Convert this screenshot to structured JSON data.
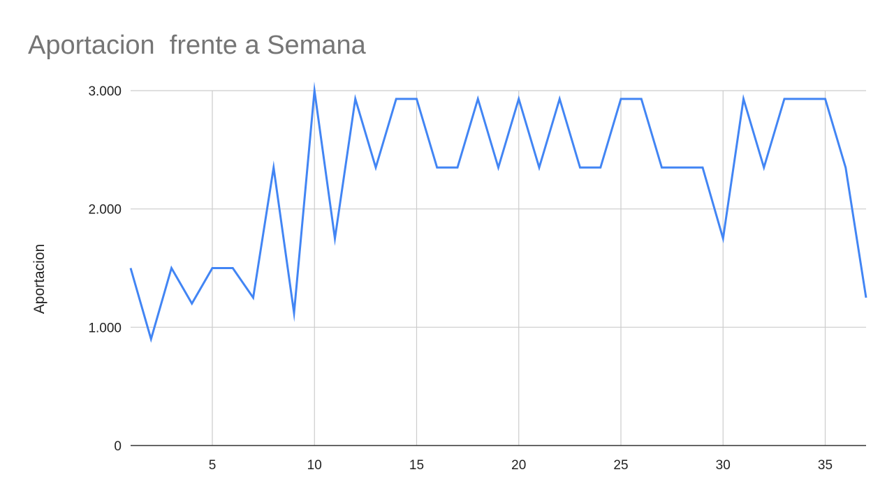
{
  "chart_data": {
    "type": "line",
    "title": "Aportacion  frente a Semana",
    "xlabel": "",
    "ylabel": "Aportacion",
    "xlim": [
      1,
      37
    ],
    "ylim": [
      0,
      3000
    ],
    "x_ticks": [
      5,
      10,
      15,
      20,
      25,
      30,
      35
    ],
    "y_ticks": [
      0,
      1000,
      2000,
      3000
    ],
    "y_tick_labels": [
      "0",
      "1.000",
      "2.000",
      "3.000"
    ],
    "grid": true,
    "legend": "none",
    "series": [
      {
        "color": "#4285f4",
        "x": [
          1,
          2,
          3,
          4,
          5,
          6,
          7,
          8,
          9,
          10,
          11,
          12,
          13,
          14,
          15,
          16,
          17,
          18,
          19,
          20,
          21,
          22,
          23,
          24,
          25,
          26,
          27,
          28,
          29,
          30,
          31,
          32,
          33,
          34,
          35,
          36,
          37
        ],
        "values": [
          1500,
          900,
          1500,
          1200,
          1500,
          1500,
          1250,
          2350,
          1120,
          3000,
          1750,
          2930,
          2350,
          2930,
          2930,
          2350,
          2350,
          2930,
          2350,
          2930,
          2350,
          2930,
          2350,
          2350,
          2930,
          2930,
          2350,
          2350,
          2350,
          1750,
          2930,
          2350,
          2930,
          2930,
          2930,
          2350,
          1250
        ]
      }
    ]
  }
}
